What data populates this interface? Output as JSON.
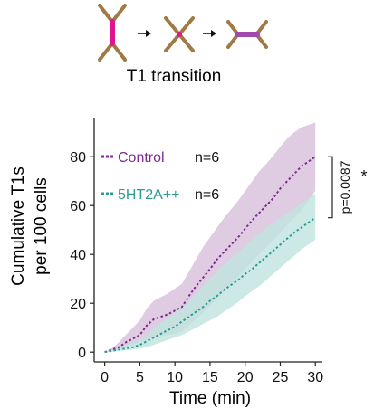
{
  "header": {
    "title": "T1 transition"
  },
  "colors": {
    "control": "#7b2d8e",
    "control_band": "#d9c2dd",
    "treatment": "#2a9d8f",
    "treatment_band": "#bfe3df",
    "cell_edge": "#a07a45",
    "junction_pink": "#e0148c",
    "junction_purple": "#a04ab0",
    "axis": "#222222"
  },
  "icons": [
    "cell-junction-vertical-icon",
    "arrow-right-icon",
    "cell-junction-fourfold-icon",
    "arrow-right-icon",
    "cell-junction-horizontal-icon"
  ],
  "chart_data": {
    "type": "line",
    "xlabel": "Time (min)",
    "ylabel": [
      "Cumulative T1s",
      "per 100 cells"
    ],
    "xlim": [
      -1.5,
      31
    ],
    "ylim": [
      -4,
      96
    ],
    "xticks": [
      0,
      5,
      10,
      15,
      20,
      25,
      30
    ],
    "yticks": [
      0,
      20,
      40,
      60,
      80
    ],
    "series": [
      {
        "name": "Control",
        "n_label": "n=6",
        "x": [
          0,
          1,
          2,
          3,
          4,
          5,
          6,
          7,
          8,
          9,
          10,
          11,
          12,
          13,
          14,
          15,
          16,
          17,
          18,
          19,
          20,
          21,
          22,
          23,
          24,
          25,
          26,
          27,
          28,
          29,
          30
        ],
        "y": [
          0,
          1,
          2,
          4,
          5.5,
          7,
          11,
          13.5,
          14.5,
          15.5,
          17,
          18.5,
          23,
          27,
          30.5,
          34,
          38,
          41,
          44,
          47,
          50.5,
          54,
          57,
          60,
          63,
          67,
          70,
          73,
          76,
          78,
          80
        ],
        "lower": [
          0,
          0.5,
          1,
          2,
          3,
          4,
          5,
          6,
          6.5,
          7,
          7.5,
          8.5,
          11,
          13.5,
          16,
          19,
          22,
          25,
          28,
          31,
          34,
          37,
          40,
          43,
          46,
          49,
          52,
          55,
          58,
          62,
          66
        ],
        "upper": [
          0,
          1.5,
          4,
          7,
          10,
          13,
          18,
          21,
          22.5,
          24,
          26,
          28,
          33,
          38,
          43,
          47,
          51,
          55,
          58.5,
          62,
          66,
          70,
          74,
          77,
          80.5,
          84,
          87.5,
          90,
          92,
          93,
          94
        ]
      },
      {
        "name": "5HT2A++",
        "n_label": "n=6",
        "x": [
          0,
          1,
          2,
          3,
          4,
          5,
          6,
          7,
          8,
          9,
          10,
          11,
          12,
          13,
          14,
          15,
          16,
          17,
          18,
          19,
          20,
          21,
          22,
          23,
          24,
          25,
          26,
          27,
          28,
          29,
          30
        ],
        "y": [
          0,
          0.5,
          1,
          1.5,
          2,
          3,
          4.5,
          6,
          7.5,
          9,
          10.5,
          12.5,
          14.5,
          16.5,
          18.5,
          21,
          23,
          25.5,
          27.5,
          29.5,
          32,
          34,
          36.5,
          39,
          41.5,
          44,
          46.5,
          49,
          51,
          53,
          55
        ],
        "lower": [
          0,
          0.2,
          0.5,
          0.8,
          1,
          1.5,
          2,
          3,
          4,
          5,
          6,
          7,
          8.5,
          10,
          11.5,
          13,
          14.5,
          16.5,
          18.5,
          20.5,
          23,
          25,
          27,
          29.5,
          32,
          34.5,
          37,
          39.5,
          42,
          44,
          46
        ],
        "upper": [
          0,
          1,
          2,
          3,
          4,
          5,
          7,
          10,
          12,
          14,
          16,
          18.5,
          21,
          24,
          27,
          30,
          33,
          36,
          38.5,
          41,
          43.5,
          46,
          48.5,
          51,
          53,
          55,
          57,
          59,
          61,
          63,
          65
        ]
      }
    ],
    "annotation": {
      "text": "p=0.0087",
      "marker": "*",
      "bracket_from": 55,
      "bracket_to": 80
    },
    "legend_position": "upper-left",
    "grid": false
  }
}
